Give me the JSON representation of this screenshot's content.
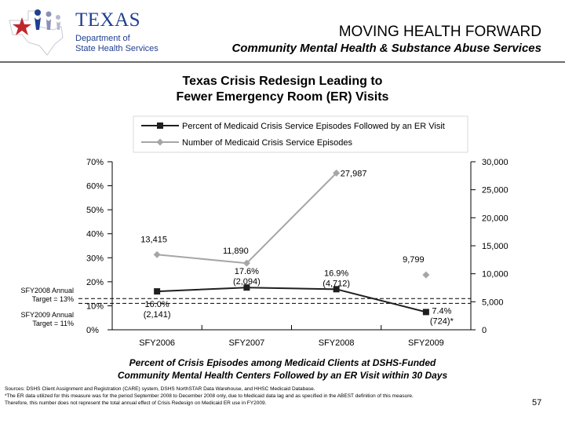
{
  "header": {
    "logo_line1": "TEXAS",
    "logo_line2": "Department of",
    "logo_line3": "State Health Services",
    "title": "MOVING HEALTH FORWARD",
    "subtitle": "Community Mental Health & Substance Abuse Services"
  },
  "chart_title_line1": "Texas Crisis Redesign Leading to",
  "chart_title_line2": "Fewer Emergency Room (ER) Visits",
  "targets": [
    {
      "line1": "SFY2008 Annual",
      "line2": "Target = 13%",
      "value": 13
    },
    {
      "line1": "SFY2009 Annual",
      "line2": "Target = 11%",
      "value": 11
    }
  ],
  "caption_line1": "Percent of Crisis Episodes among Medicaid Clients at DSHS-Funded",
  "caption_line2": "Community Mental Health Centers Followed by an ER Visit within 30 Days",
  "footnotes": {
    "line1": "Sources: DSHS Client Assignment and Registration (CARE) system, DSHS NorthSTAR Data Warehouse, and HHSC Medicaid Database.",
    "line2": "*The ER data utilized for this measure was for the period September 2008 to December 2008 only, due to Medicaid data lag and as specified in the ABEST definition of this measure.",
    "line3": "Therefore, this number does not represent the total annual effect of Crisis Redesign on Medicaid ER use in FY2009."
  },
  "page_number": "57",
  "colors": {
    "pct_series": "#1f1f1f",
    "count_series": "#a6a6a6",
    "logo_blue": "#1f3f8f",
    "logo_red": "#c0272d"
  },
  "chart_data": {
    "type": "line",
    "categories": [
      "SFY2006",
      "SFY2007",
      "SFY2008",
      "SFY2009"
    ],
    "legend_position": "top",
    "y_left": {
      "min": 0,
      "max": 70,
      "step": 10,
      "ticks": [
        "0%",
        "10%",
        "20%",
        "30%",
        "40%",
        "50%",
        "60%",
        "70%"
      ]
    },
    "y_right": {
      "min": 0,
      "max": 30000,
      "step": 5000,
      "ticks": [
        "0",
        "5,000",
        "10,000",
        "15,000",
        "20,000",
        "25,000",
        "30,000"
      ]
    },
    "series": [
      {
        "name": "Percent of Medicaid Crisis Service Episodes Followed by an ER Visit",
        "axis": "left",
        "values": [
          16.0,
          17.6,
          16.9,
          7.4
        ],
        "labels": [
          "16.0%",
          "17.6%",
          "16.9%",
          "7.4%"
        ],
        "sublabels": [
          "(2,141)",
          "(2,094)",
          "(4,712)",
          "(724)*"
        ]
      },
      {
        "name": "Number of Medicaid Crisis Service Episodes",
        "axis": "right",
        "values": [
          13415,
          11890,
          27987,
          9799
        ],
        "labels": [
          "13,415",
          "11,890",
          "27,987",
          "9,799"
        ]
      }
    ]
  }
}
